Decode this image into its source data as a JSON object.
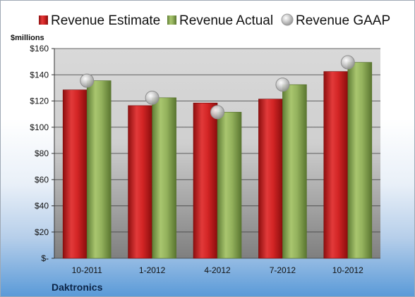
{
  "chart_data": {
    "type": "bar",
    "unit_label": "$millions",
    "company": "Daktronics",
    "categories": [
      "10-2011",
      "1-2012",
      "4-2012",
      "7-2012",
      "10-2012"
    ],
    "series": [
      {
        "name": "Revenue Estimate",
        "kind": "bar",
        "color": "#cc2222",
        "values": [
          128.5,
          116.5,
          118.5,
          121.5,
          142.5
        ]
      },
      {
        "name": "Revenue Actual",
        "kind": "bar",
        "color": "#8fae5a",
        "values": [
          135.5,
          122.5,
          111.5,
          132.5,
          149.5
        ]
      },
      {
        "name": "Revenue GAAP",
        "kind": "marker",
        "color": "#b9b9b9",
        "values": [
          135.5,
          122.5,
          111.5,
          132.5,
          149.5
        ]
      }
    ],
    "ylim": [
      0,
      160
    ],
    "yticks": [
      0,
      20,
      40,
      60,
      80,
      100,
      120,
      140,
      160
    ],
    "ytick_labels": [
      "$-",
      "$20",
      "$40",
      "$60",
      "$80",
      "$100",
      "$120",
      "$140",
      "$160"
    ],
    "grid": true,
    "legend_position": "top"
  }
}
